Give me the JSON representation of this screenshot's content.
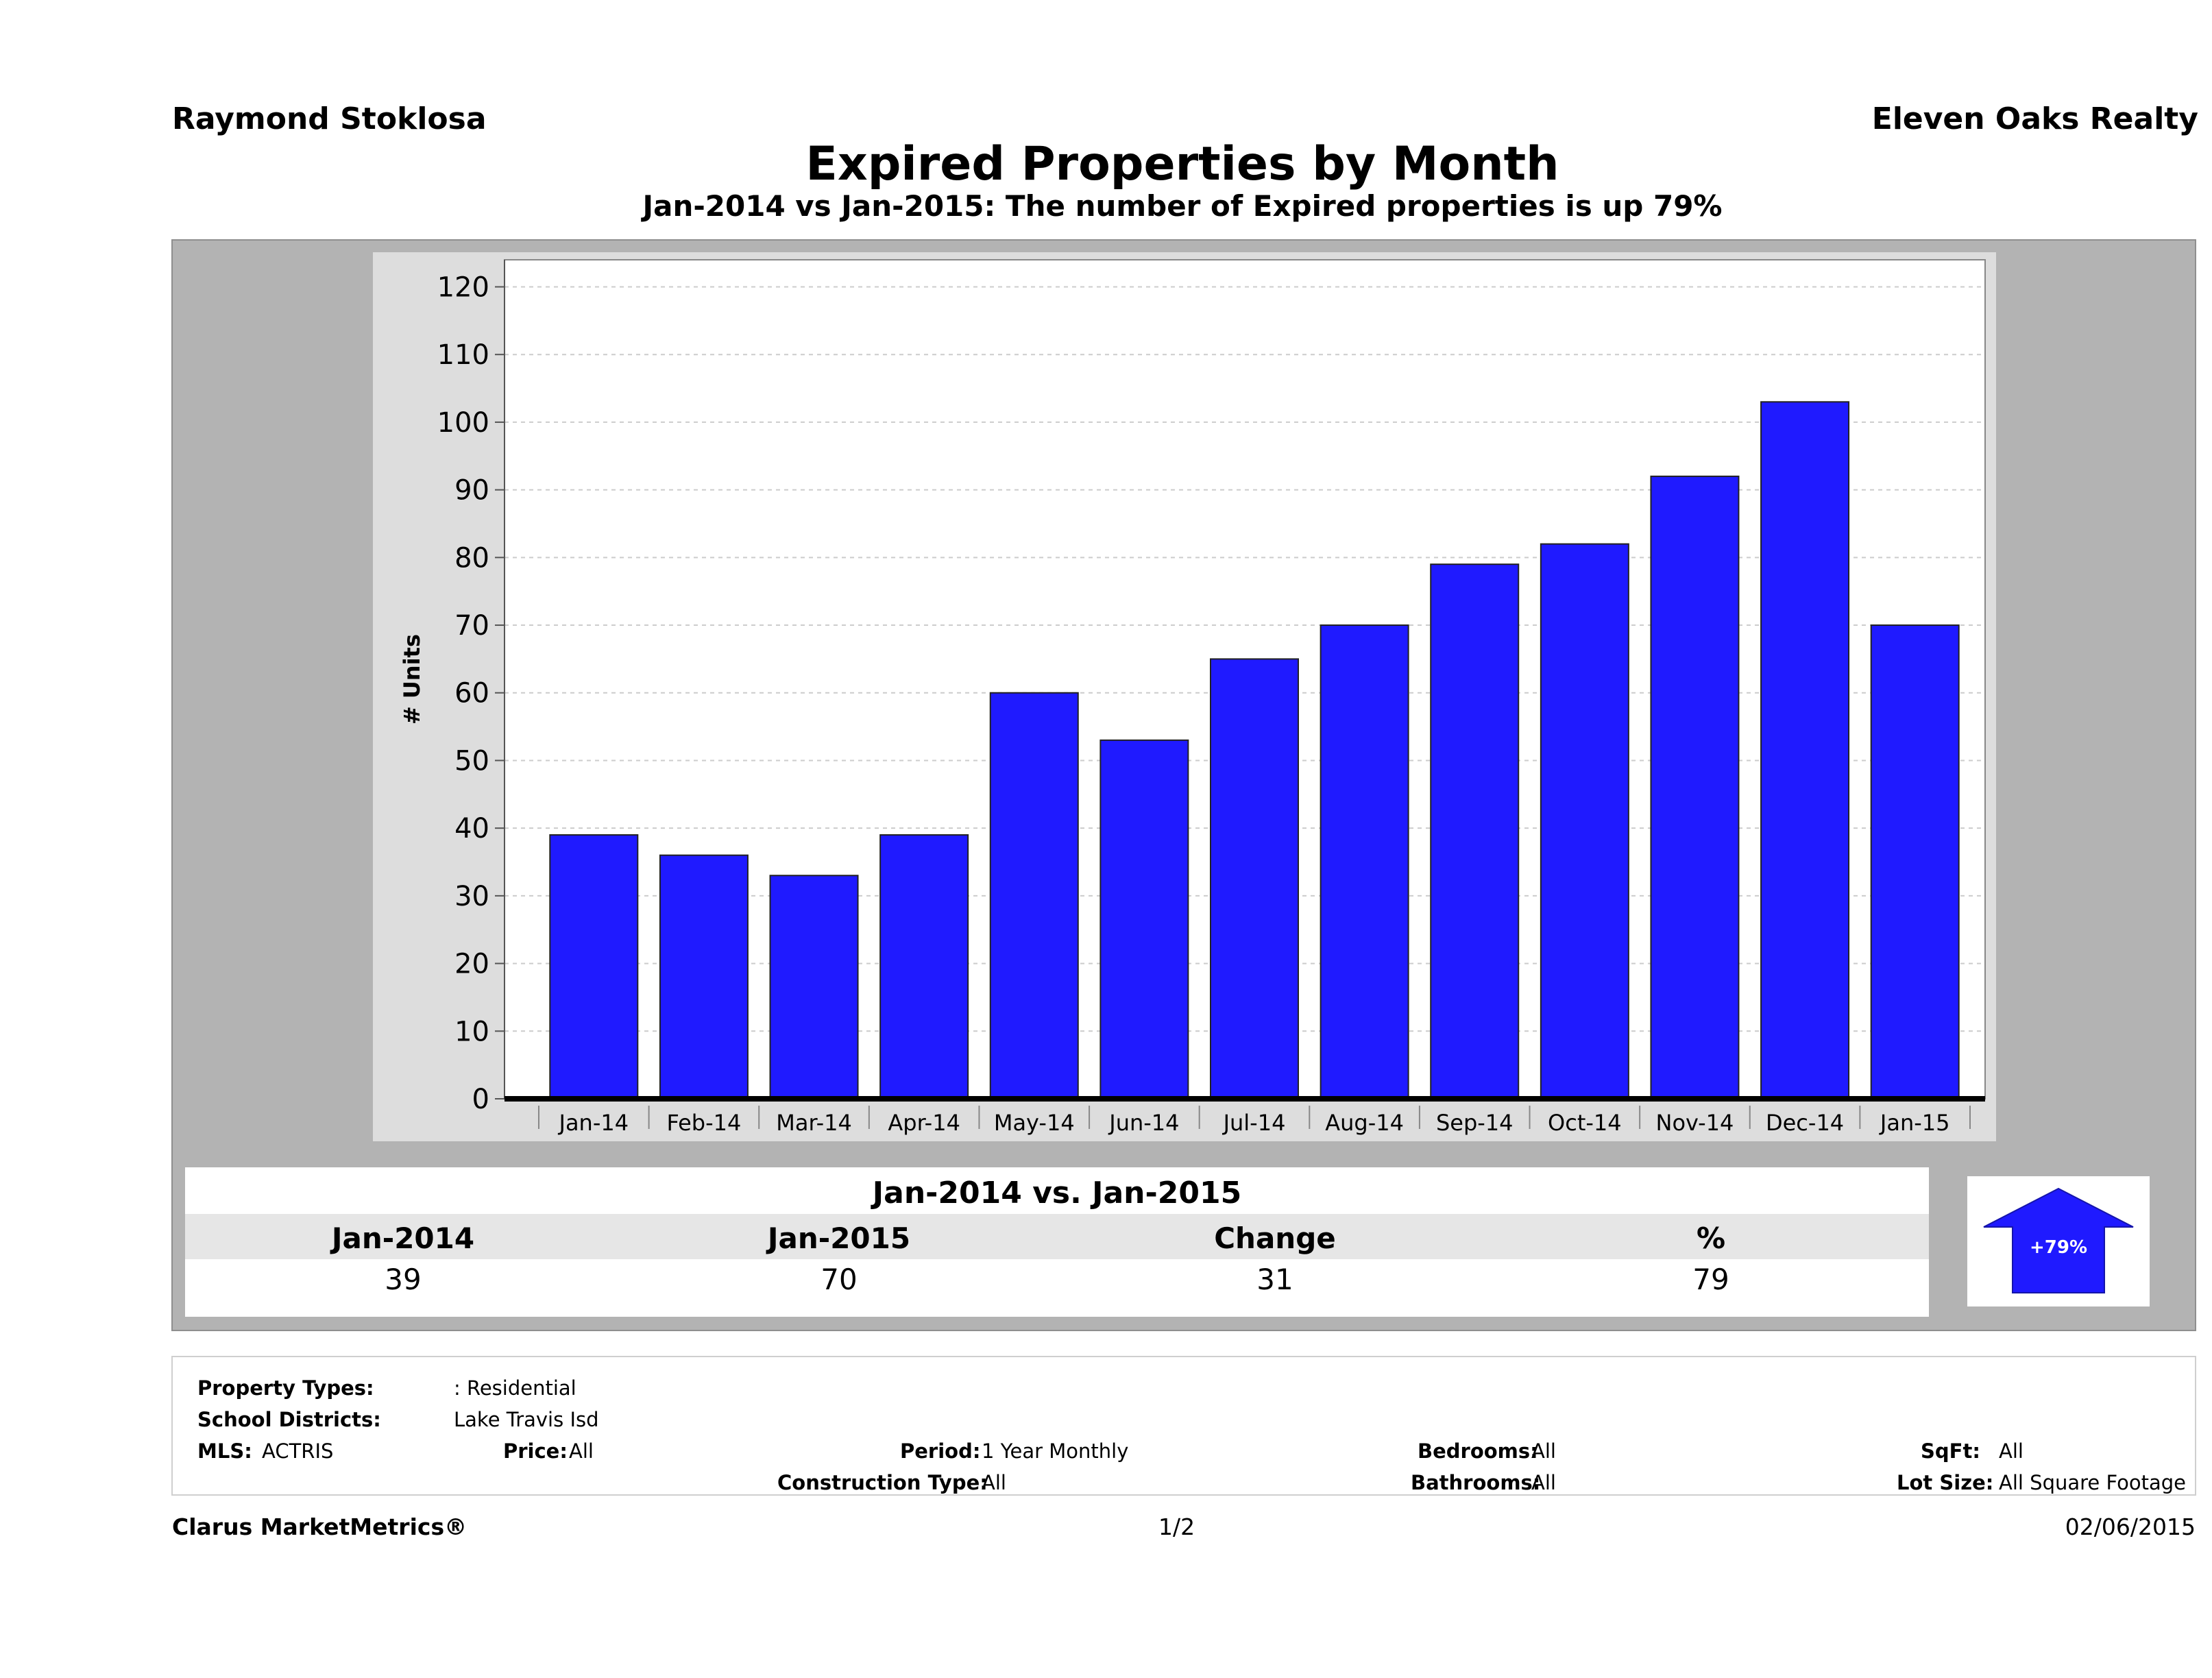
{
  "header": {
    "agent": "Raymond Stoklosa",
    "office": "Eleven Oaks Realty",
    "title": "Expired Properties by Month",
    "subtitle": "Jan-2014 vs Jan-2015: The number of Expired  properties is up 79%"
  },
  "chart_data": {
    "type": "bar",
    "ylabel": "# Units",
    "xlabel": "",
    "ylim": [
      0,
      120
    ],
    "yticks": [
      0,
      10,
      20,
      30,
      40,
      50,
      60,
      70,
      80,
      90,
      100,
      110,
      120
    ],
    "grid": true,
    "categories": [
      "Jan-14",
      "Feb-14",
      "Mar-14",
      "Apr-14",
      "May-14",
      "Jun-14",
      "Jul-14",
      "Aug-14",
      "Sep-14",
      "Oct-14",
      "Nov-14",
      "Dec-14",
      "Jan-15"
    ],
    "values": [
      39,
      36,
      33,
      39,
      60,
      53,
      65,
      70,
      79,
      82,
      92,
      103,
      70
    ],
    "bar_color": "#1f1aff"
  },
  "comparison": {
    "heading": "Jan-2014 vs. Jan-2015",
    "columns": [
      "Jan-2014",
      "Jan-2015",
      "Change",
      "%"
    ],
    "values": [
      "39",
      "70",
      "31",
      "79"
    ],
    "badge": "+79%",
    "badge_color": "#1f1aff",
    "direction": "up"
  },
  "criteria": {
    "property_types_label": "Property Types:",
    "property_types_value": ": Residential",
    "school_districts_label": "School Districts:",
    "school_districts_value": "Lake Travis Isd",
    "mls_label": "MLS:",
    "mls_value": "ACTRIS",
    "price_label": "Price:",
    "price_value": "All",
    "period_label": "Period:",
    "period_value": "1 Year Monthly",
    "construction_label": "Construction Type:",
    "construction_value": "All",
    "bedrooms_label": "Bedrooms:",
    "bedrooms_value": "All",
    "bathrooms_label": "Bathrooms:",
    "bathrooms_value": "All",
    "sqft_label": "SqFt:",
    "sqft_value": "All",
    "lotsize_label": "Lot Size:",
    "lotsize_value": "All Square Footage"
  },
  "footer": {
    "brand": "Clarus MarketMetrics®",
    "page": "1/2",
    "date": "02/06/2015"
  }
}
